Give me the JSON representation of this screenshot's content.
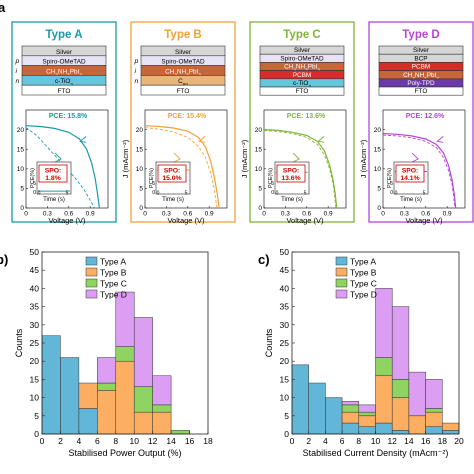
{
  "colors": {
    "type_a": "#1a9aaa",
    "type_b": "#f0a23a",
    "type_c": "#7fb538",
    "type_d": "#b447d6",
    "hist_a": "#62b7d8",
    "hist_b": "#fcae62",
    "hist_c": "#8fd460",
    "hist_d": "#dc9ef2",
    "silver": "#d6d6d6",
    "spiro": "#e6e3f5",
    "perov": "#c8663a",
    "tio2": "#65c6dc",
    "c60": "#e9b57f",
    "pcbm": "#d82c2c",
    "bcp": "#c86b5a",
    "polytpd": "#6a3aa8",
    "fto": "#ffffff",
    "spo_text": "#cc0000"
  },
  "panel_labels": {
    "a": "a",
    "b": "b)",
    "c": "c)"
  },
  "device_types": [
    {
      "name": "Type A",
      "layers": [
        "Silver",
        "Spiro-OMeTAD",
        "CH3NH3PbI3",
        "c-TiO2",
        "FTO"
      ],
      "layer_colors": [
        "silver",
        "spiro",
        "perov",
        "tio2",
        "fto"
      ],
      "pin": [
        "p",
        "i",
        "n"
      ],
      "pce_label": "PCE: 15.8%",
      "spo_title": "SPO:",
      "spo_value": "1.8%"
    },
    {
      "name": "Type B",
      "layers": [
        "Silver",
        "Spiro-OMeTAD",
        "CH3NH3PbI3",
        "C60",
        "FTO"
      ],
      "layer_colors": [
        "silver",
        "spiro",
        "perov",
        "c60",
        "fto"
      ],
      "pin": [
        "p",
        "i",
        "n"
      ],
      "pce_label": "PCE: 15.4%",
      "spo_title": "SPO:",
      "spo_value": "15.0%"
    },
    {
      "name": "Type C",
      "layers": [
        "Silver",
        "Spiro-OMeTAD",
        "CH3NH3PbI3",
        "PCBM",
        "c-TiO2",
        "FTO"
      ],
      "layer_colors": [
        "silver",
        "spiro",
        "perov",
        "pcbm",
        "tio2",
        "fto"
      ],
      "pin": [],
      "pce_label": "PCE: 13.6%",
      "spo_title": "SPO:",
      "spo_value": "13.6%"
    },
    {
      "name": "Type D",
      "layers": [
        "Silver",
        "BCP",
        "PCBM",
        "CH3NH3PbI3",
        "Poly-TPD",
        "FTO"
      ],
      "layer_colors": [
        "silver",
        "silver",
        "pcbm",
        "perov",
        "polytpd",
        "fto"
      ],
      "pin": [],
      "pce_label": "PCE: 12.6%",
      "spo_title": "SPO:",
      "spo_value": "14.1%"
    }
  ],
  "jv_axes": {
    "xlabel": "Voltage (V)",
    "ylabel": "J (mAcm⁻²)",
    "xticks": [
      "0",
      "0.3",
      "0.6",
      "0.9"
    ],
    "yticks": [
      "0",
      "5",
      "10",
      "15",
      "20"
    ],
    "inset_xlabel": "Time (s)",
    "inset_ylabel": "PCE(%)",
    "inset_xticks": [
      "0",
      "5"
    ],
    "inset_yticks": [
      "0",
      "5"
    ]
  },
  "chart_data": [
    {
      "type": "line",
      "panel": "Type A",
      "xlabel": "Voltage (V)",
      "ylabel": "J (mAcm⁻²)",
      "xlim": [
        0,
        1.15
      ],
      "ylim": [
        0,
        25
      ],
      "series": [
        {
          "style": "solid",
          "x": [
            0,
            0.2,
            0.4,
            0.6,
            0.75,
            0.85,
            0.92,
            0.97,
            1.0,
            1.03
          ],
          "y": [
            21,
            20.8,
            20.3,
            19.3,
            17.6,
            15,
            11.5,
            7.5,
            4,
            0
          ]
        },
        {
          "style": "dashed",
          "x": [
            0,
            0.15,
            0.3,
            0.45,
            0.6,
            0.72,
            0.82,
            0.9,
            0.96
          ],
          "y": [
            20.5,
            18.5,
            15.5,
            12.5,
            9.5,
            7,
            4.5,
            2,
            0
          ]
        }
      ]
    },
    {
      "type": "line",
      "panel": "Type B",
      "xlabel": "Voltage (V)",
      "ylabel": "J (mAcm⁻²)",
      "xlim": [
        0,
        1.15
      ],
      "ylim": [
        0,
        25
      ],
      "series": [
        {
          "style": "solid",
          "x": [
            0,
            0.2,
            0.4,
            0.6,
            0.75,
            0.85,
            0.92,
            0.97,
            1.01,
            1.04
          ],
          "y": [
            21,
            20.8,
            20.4,
            19.6,
            18,
            15.5,
            12,
            8,
            4,
            0
          ]
        },
        {
          "style": "dashed",
          "x": [
            0,
            0.2,
            0.4,
            0.6,
            0.75,
            0.85,
            0.92,
            0.97,
            1.01
          ],
          "y": [
            20.5,
            20.1,
            19.4,
            18,
            15.7,
            12.8,
            9,
            5,
            0
          ]
        }
      ]
    },
    {
      "type": "line",
      "panel": "Type C",
      "xlabel": "Voltage (V)",
      "ylabel": "J (mAcm⁻²)",
      "xlim": [
        0,
        1.15
      ],
      "ylim": [
        0,
        25
      ],
      "series": [
        {
          "style": "solid",
          "x": [
            0,
            0.2,
            0.4,
            0.6,
            0.75,
            0.85,
            0.92,
            0.97,
            1.0,
            1.02
          ],
          "y": [
            20,
            19.8,
            19.3,
            18.5,
            17,
            14.5,
            11,
            7,
            3.5,
            0
          ]
        },
        {
          "style": "dashed",
          "x": [
            0,
            0.2,
            0.4,
            0.6,
            0.75,
            0.85,
            0.92,
            0.97,
            1.01
          ],
          "y": [
            19.8,
            19.5,
            19,
            18,
            16.2,
            13.5,
            10,
            6,
            0
          ]
        }
      ]
    },
    {
      "type": "line",
      "panel": "Type D",
      "xlabel": "Voltage (V)",
      "ylabel": "J (mAcm⁻²)",
      "xlim": [
        0,
        1.15
      ],
      "ylim": [
        0,
        25
      ],
      "series": [
        {
          "style": "solid",
          "x": [
            0,
            0.2,
            0.4,
            0.6,
            0.75,
            0.85,
            0.92,
            0.97,
            1.0,
            1.02
          ],
          "y": [
            19,
            18.8,
            18.4,
            17.6,
            16.2,
            14,
            10.8,
            7,
            3.5,
            0
          ]
        },
        {
          "style": "dashed",
          "x": [
            0,
            0.2,
            0.4,
            0.6,
            0.75,
            0.85,
            0.92,
            0.97,
            1.01
          ],
          "y": [
            18.6,
            18.4,
            17.9,
            17,
            15.4,
            12.8,
            9.5,
            5.8,
            0
          ]
        }
      ]
    },
    {
      "type": "bar",
      "stacked": true,
      "panel": "b)",
      "xlabel": "Stabilised Power Output (%)",
      "ylabel": "Counts",
      "xlim": [
        0,
        18
      ],
      "ylim": [
        0,
        50
      ],
      "xticks": [
        0,
        2,
        4,
        6,
        8,
        10,
        12,
        14,
        16,
        18
      ],
      "yticks": [
        0,
        5,
        10,
        15,
        20,
        25,
        30,
        35,
        40,
        45,
        50
      ],
      "legend": "top-left",
      "bins": [
        [
          0,
          2
        ],
        [
          2,
          4
        ],
        [
          4,
          6
        ],
        [
          6,
          8
        ],
        [
          8,
          10
        ],
        [
          10,
          12
        ],
        [
          12,
          14
        ],
        [
          14,
          16
        ],
        [
          16,
          18
        ]
      ],
      "series": [
        {
          "name": "Type A",
          "values": [
            27,
            21,
            7,
            0,
            0,
            0,
            0,
            0,
            0
          ]
        },
        {
          "name": "Type B",
          "values": [
            0,
            0,
            7,
            12,
            20,
            6,
            6,
            0,
            0
          ]
        },
        {
          "name": "Type C",
          "values": [
            0,
            0,
            0,
            2,
            4,
            7,
            2,
            1,
            0
          ]
        },
        {
          "name": "Type D",
          "values": [
            0,
            0,
            0,
            7,
            15,
            19,
            8,
            0,
            0
          ]
        }
      ]
    },
    {
      "type": "bar",
      "stacked": true,
      "panel": "c)",
      "xlabel": "Stabilised Current Density (mAcm⁻²)",
      "ylabel": "Counts",
      "xlim": [
        0,
        20
      ],
      "ylim": [
        0,
        50
      ],
      "xticks": [
        0,
        2,
        4,
        6,
        8,
        10,
        12,
        14,
        16,
        18,
        20
      ],
      "yticks": [
        0,
        5,
        10,
        15,
        20,
        25,
        30,
        35,
        40,
        45,
        50
      ],
      "legend": "top-left",
      "bins": [
        [
          0,
          2
        ],
        [
          2,
          4
        ],
        [
          4,
          6
        ],
        [
          6,
          8
        ],
        [
          8,
          10
        ],
        [
          10,
          12
        ],
        [
          12,
          14
        ],
        [
          14,
          16
        ],
        [
          16,
          18
        ],
        [
          18,
          20
        ]
      ],
      "series": [
        {
          "name": "Type A",
          "values": [
            19,
            14,
            10,
            3,
            2,
            3,
            1,
            0,
            2,
            1
          ]
        },
        {
          "name": "Type B",
          "values": [
            0,
            0,
            0,
            3,
            3,
            13,
            9,
            5,
            4,
            2
          ]
        },
        {
          "name": "Type C",
          "values": [
            0,
            0,
            0,
            2,
            1,
            5,
            5,
            0,
            1,
            0
          ]
        },
        {
          "name": "Type D",
          "values": [
            0,
            0,
            0,
            1,
            2,
            19,
            20,
            12,
            8,
            0
          ]
        }
      ]
    }
  ]
}
